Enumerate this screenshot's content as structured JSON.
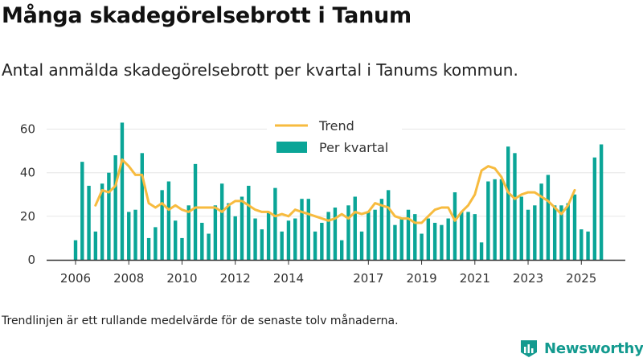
{
  "title": "Många skadegörelsebrott i Tanum",
  "subtitle": "Antal anmälda skadegörelsebrott per kvartal i Tanums kommun.",
  "footnote": "Trendlinjen är ett rullande medelvärde för de senaste tolv månaderna.",
  "brand": {
    "name": "Newsworthy",
    "icon": "newsworthy-logo-icon",
    "color": "#139a8f"
  },
  "colors": {
    "bar": "#0aa597",
    "trend": "#f7bb3f",
    "axis": "#333333",
    "grid": "#e6e6e6",
    "text": "#333333"
  },
  "chart_data": {
    "type": "bar",
    "ylim": [
      0,
      65
    ],
    "yticks": [
      0,
      20,
      40,
      60
    ],
    "xticks": [
      {
        "label": "2006",
        "index": 0
      },
      {
        "label": "2008",
        "index": 8
      },
      {
        "label": "2010",
        "index": 16
      },
      {
        "label": "2012",
        "index": 24
      },
      {
        "label": "2014",
        "index": 32
      },
      {
        "label": "2017",
        "index": 44
      },
      {
        "label": "2019",
        "index": 52
      },
      {
        "label": "2021",
        "index": 60
      },
      {
        "label": "2023",
        "index": 68
      },
      {
        "label": "2025",
        "index": 76
      }
    ],
    "legend": {
      "position": "top",
      "entries": [
        {
          "name": "Trend",
          "kind": "line"
        },
        {
          "name": "Per kvartal",
          "kind": "bar"
        }
      ]
    },
    "series": [
      {
        "name": "Per kvartal",
        "type": "bar",
        "values": [
          9,
          45,
          34,
          13,
          35,
          40,
          48,
          63,
          22,
          23,
          49,
          10,
          15,
          32,
          36,
          18,
          10,
          25,
          44,
          17,
          12,
          25,
          35,
          26,
          20,
          29,
          34,
          19,
          14,
          22,
          33,
          13,
          18,
          19,
          28,
          28,
          13,
          17,
          22,
          24,
          9,
          25,
          29,
          13,
          22,
          23,
          28,
          32,
          16,
          19,
          23,
          21,
          12,
          19,
          17,
          16,
          19,
          31,
          22,
          22,
          21,
          8,
          36,
          37,
          37,
          52,
          49,
          29,
          23,
          25,
          35,
          39,
          25,
          25,
          26,
          30,
          14,
          13,
          47,
          53
        ]
      },
      {
        "name": "Trend",
        "type": "line",
        "start_index": 3,
        "values": [
          25,
          32,
          31,
          34,
          46,
          43,
          39,
          39,
          26,
          24,
          26,
          23,
          25,
          23,
          22,
          24,
          24,
          24,
          24,
          22,
          25,
          27,
          27,
          25,
          23,
          22,
          22,
          20,
          21,
          20,
          23,
          22,
          21,
          20,
          19,
          18,
          19,
          21,
          19,
          22,
          21,
          22,
          26,
          25,
          24,
          20,
          19,
          19,
          17,
          17,
          20,
          23,
          24,
          24,
          18,
          22,
          25,
          30,
          41,
          43,
          42,
          38,
          31,
          28,
          30,
          31,
          31,
          29,
          27,
          24,
          21,
          25,
          32
        ]
      }
    ]
  }
}
